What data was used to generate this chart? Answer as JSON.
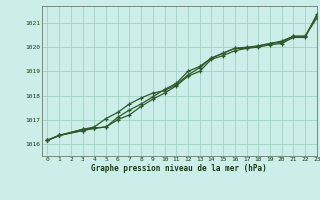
{
  "background_color": "#cceee8",
  "grid_color": "#99ccbb",
  "line_color": "#2d5a2d",
  "title": "Graphe pression niveau de la mer (hPa)",
  "xlim": [
    -0.5,
    23
  ],
  "ylim": [
    1015.5,
    1021.7
  ],
  "yticks": [
    1016,
    1017,
    1018,
    1019,
    1020,
    1021
  ],
  "xticks": [
    0,
    1,
    2,
    3,
    4,
    5,
    6,
    7,
    8,
    9,
    10,
    11,
    12,
    13,
    14,
    15,
    16,
    17,
    18,
    19,
    20,
    21,
    22,
    23
  ],
  "series": [
    [
      1016.15,
      1016.35,
      null,
      1016.6,
      1016.65,
      null,
      null,
      null,
      null,
      null,
      null,
      null,
      null,
      null,
      null,
      null,
      null,
      null,
      null,
      null,
      null,
      null,
      null,
      null
    ],
    [
      1016.15,
      1016.35,
      null,
      1016.55,
      1016.65,
      1016.7,
      1017.0,
      1017.2,
      1017.55,
      1017.85,
      1018.1,
      1018.4,
      1018.8,
      1019.0,
      1019.5,
      1019.65,
      1019.85,
      1019.95,
      1020.0,
      1020.1,
      1020.15,
      1020.4,
      1020.4,
      1021.35
    ],
    [
      1016.15,
      1016.35,
      null,
      1016.55,
      1016.65,
      1016.7,
      1017.1,
      1017.4,
      1017.65,
      1017.95,
      1018.25,
      1018.5,
      1019.0,
      1019.2,
      1019.55,
      1019.75,
      1019.95,
      1020.0,
      1020.05,
      1020.15,
      1020.2,
      1020.45,
      1020.45,
      1021.3
    ],
    [
      1016.15,
      1016.35,
      null,
      1016.6,
      1016.7,
      1017.05,
      1017.3,
      1017.65,
      1017.9,
      1018.1,
      1018.2,
      1018.45,
      1018.85,
      1019.15,
      1019.55,
      1019.75,
      1019.95,
      1019.95,
      1020.05,
      1020.15,
      1020.25,
      1020.45,
      1020.45,
      1021.2
    ]
  ],
  "series2": [
    {
      "x": [
        0,
        1,
        3,
        4
      ],
      "y": [
        1016.15,
        1016.35,
        1016.6,
        1016.65
      ]
    },
    {
      "x": [
        0,
        1,
        3,
        4,
        5,
        6,
        7,
        8,
        9,
        10,
        11,
        12,
        13,
        14,
        15,
        16,
        17,
        18,
        19,
        20,
        21,
        22,
        23
      ],
      "y": [
        1016.15,
        1016.35,
        1016.55,
        1016.65,
        1016.7,
        1017.0,
        1017.2,
        1017.55,
        1017.85,
        1018.1,
        1018.4,
        1018.8,
        1019.0,
        1019.5,
        1019.65,
        1019.85,
        1019.95,
        1020.0,
        1020.1,
        1020.15,
        1020.4,
        1020.4,
        1021.35
      ]
    },
    {
      "x": [
        0,
        1,
        3,
        4,
        5,
        6,
        7,
        8,
        9,
        10,
        11,
        12,
        13,
        14,
        15,
        16,
        17,
        18,
        19,
        20,
        21,
        22,
        23
      ],
      "y": [
        1016.15,
        1016.35,
        1016.55,
        1016.65,
        1016.7,
        1017.1,
        1017.4,
        1017.65,
        1017.95,
        1018.25,
        1018.5,
        1019.0,
        1019.2,
        1019.55,
        1019.75,
        1019.95,
        1020.0,
        1020.05,
        1020.15,
        1020.2,
        1020.45,
        1020.45,
        1021.3
      ]
    },
    {
      "x": [
        0,
        1,
        3,
        4,
        5,
        6,
        7,
        8,
        9,
        10,
        11,
        12,
        13,
        14,
        15,
        16,
        17,
        18,
        19,
        20,
        21,
        22,
        23
      ],
      "y": [
        1016.15,
        1016.35,
        1016.6,
        1016.7,
        1017.05,
        1017.3,
        1017.65,
        1017.9,
        1018.1,
        1018.2,
        1018.45,
        1018.85,
        1019.15,
        1019.55,
        1019.75,
        1019.95,
        1019.95,
        1020.05,
        1020.15,
        1020.25,
        1020.45,
        1020.45,
        1021.2
      ]
    }
  ]
}
